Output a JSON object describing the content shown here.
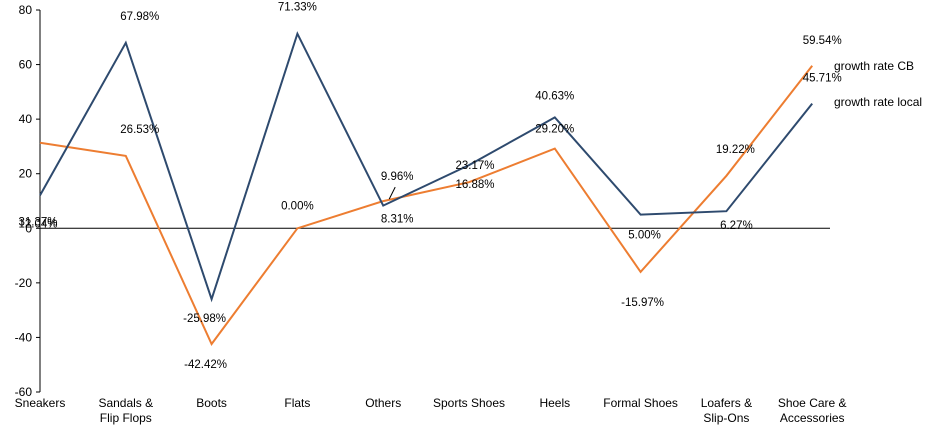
{
  "chart_data": {
    "type": "line",
    "title": "",
    "xlabel": "",
    "ylabel": "",
    "ylim": [
      -60,
      80
    ],
    "yticks": [
      80,
      60,
      40,
      20,
      0,
      -20,
      -40,
      -60
    ],
    "grid": false,
    "legend_position": "right",
    "categories": [
      [
        "Sneakers"
      ],
      [
        "Sandals &",
        "Flip Flops"
      ],
      [
        "Boots"
      ],
      [
        "Flats"
      ],
      [
        "Others"
      ],
      [
        "Sports Shoes"
      ],
      [
        "Heels"
      ],
      [
        "Formal Shoes"
      ],
      [
        "Loafers &",
        "Slip-Ons"
      ],
      [
        "Shoe Care &",
        "Accessories"
      ]
    ],
    "series": [
      {
        "name": "growth rate CB",
        "color": "#ED7D31",
        "values": [
          31.37,
          26.53,
          -42.42,
          0.0,
          9.96,
          16.88,
          29.2,
          -15.97,
          19.22,
          59.54
        ],
        "labels": [
          "31.37%",
          "26.53%",
          "-42.42%",
          "0.00%",
          "9.96%",
          "16.88%",
          "29.20%",
          "-15.97%",
          "19.22%",
          "59.54%"
        ]
      },
      {
        "name": "growth rate local",
        "color": "#2E4A6E",
        "values": [
          12.04,
          67.98,
          -25.98,
          71.33,
          8.31,
          23.17,
          40.63,
          5.0,
          6.27,
          45.71
        ],
        "labels": [
          "12.04%",
          "67.98%",
          "-25.98%",
          "71.33%",
          "8.31%",
          "23.17%",
          "40.63%",
          "5.00%",
          "6.27%",
          "45.71%"
        ]
      }
    ]
  }
}
